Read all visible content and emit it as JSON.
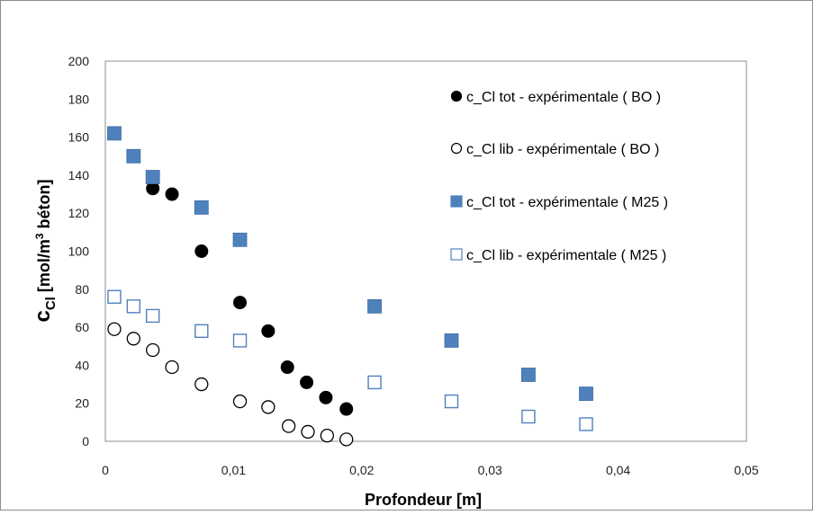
{
  "chart_data": {
    "type": "scatter",
    "title": "",
    "xlabel": "Profondeur [m]",
    "ylabel": {
      "symbol": "c",
      "subscript": "Cl",
      "unit_prefix": "[mol/m",
      "unit_sup": "3",
      "unit_suffix": " béton]"
    },
    "xlim": [
      0,
      0.05
    ],
    "ylim": [
      0,
      200
    ],
    "x_ticks": [
      "0",
      "0,01",
      "0,02",
      "0,03",
      "0,04",
      "0,05"
    ],
    "x_tick_values": [
      0,
      0.01,
      0.02,
      0.03,
      0.04,
      0.05
    ],
    "y_ticks": [
      "0",
      "20",
      "40",
      "60",
      "80",
      "100",
      "120",
      "140",
      "160",
      "180",
      "200"
    ],
    "y_tick_values": [
      0,
      20,
      40,
      60,
      80,
      100,
      120,
      140,
      160,
      180,
      200
    ],
    "grid": false,
    "legend_position": "right",
    "series": [
      {
        "name": "c_Cl tot - expérimentale ( BO )",
        "marker": "circle",
        "filled": true,
        "color": "#000000",
        "points": [
          [
            0.0037,
            133
          ],
          [
            0.0052,
            130
          ],
          [
            0.0075,
            100
          ],
          [
            0.0105,
            73
          ],
          [
            0.0127,
            58
          ],
          [
            0.0142,
            39
          ],
          [
            0.0157,
            31
          ],
          [
            0.0172,
            23
          ],
          [
            0.0188,
            17
          ]
        ]
      },
      {
        "name": "c_Cl lib - expérimentale ( BO )",
        "marker": "circle",
        "filled": false,
        "color": "#000000",
        "points": [
          [
            0.0007,
            59
          ],
          [
            0.0022,
            54
          ],
          [
            0.0037,
            48
          ],
          [
            0.0052,
            39
          ],
          [
            0.0075,
            30
          ],
          [
            0.0105,
            21
          ],
          [
            0.0127,
            18
          ],
          [
            0.0143,
            8
          ],
          [
            0.0158,
            5
          ],
          [
            0.0173,
            3
          ],
          [
            0.0188,
            1
          ]
        ]
      },
      {
        "name": "c_Cl tot - expérimentale ( M25 )",
        "marker": "square",
        "filled": true,
        "color": "#4f81bd",
        "points": [
          [
            0.0007,
            162
          ],
          [
            0.0022,
            150
          ],
          [
            0.0037,
            139
          ],
          [
            0.0075,
            123
          ],
          [
            0.0105,
            106
          ],
          [
            0.021,
            71
          ],
          [
            0.027,
            53
          ],
          [
            0.033,
            35
          ],
          [
            0.0375,
            25
          ]
        ]
      },
      {
        "name": "c_Cl lib - expérimentale ( M25 )",
        "marker": "square",
        "filled": false,
        "color": "#4f81bd",
        "points": [
          [
            0.0007,
            76
          ],
          [
            0.0022,
            71
          ],
          [
            0.0037,
            66
          ],
          [
            0.0075,
            58
          ],
          [
            0.0105,
            53
          ],
          [
            0.021,
            31
          ],
          [
            0.027,
            21
          ],
          [
            0.033,
            13
          ],
          [
            0.0375,
            9
          ]
        ]
      }
    ]
  }
}
